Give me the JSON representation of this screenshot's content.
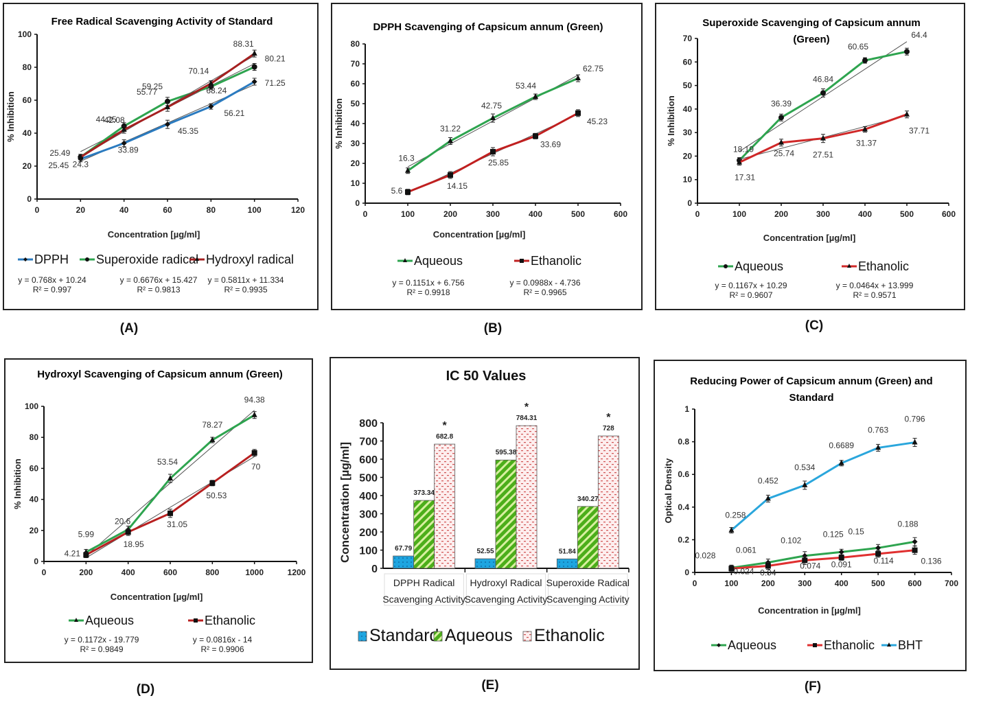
{
  "chart_data": [
    {
      "id": "A",
      "type": "line",
      "panel_label": "(A)",
      "title": "Free Radical Scavenging Activity of Standard",
      "title_lines": [
        "Free Radical Scavenging Activity of Standard"
      ],
      "xlabel": "Concentration [µg/ml]",
      "ylabel": "% Inhibition",
      "xlim": [
        0,
        120
      ],
      "ylim": [
        0,
        100
      ],
      "xticks": [
        0,
        20,
        40,
        60,
        80,
        100,
        120
      ],
      "yticks": [
        0,
        20,
        40,
        60,
        80,
        100
      ],
      "x": [
        20,
        40,
        60,
        80,
        100
      ],
      "series": [
        {
          "name": "DPPH",
          "color": "#2b7bc0",
          "marker": "diamond",
          "values": [
            24.3,
            33.89,
            45.35,
            56.21,
            71.25
          ],
          "labels": [
            "24.3",
            "33.89",
            "45.35",
            "56.21",
            "71.25"
          ],
          "equation": "y = 0.768x + 10.24",
          "r2": "R² = 0.997"
        },
        {
          "name": "Superoxide radical",
          "color": "#2ea44f",
          "marker": "circle",
          "values": [
            25.49,
            44.25,
            59.25,
            68.24,
            80.21
          ],
          "labels": [
            "25.49",
            "44.25",
            "59.25",
            "68.24",
            "80.21"
          ],
          "equation": "y = 0.6676x + 15.427",
          "r2": "R² = 0.9813"
        },
        {
          "name": "Hydroxyl radical",
          "color": "#a52020",
          "marker": "triangle",
          "values": [
            25.45,
            42.08,
            55.77,
            70.14,
            88.31
          ],
          "labels": [
            "25.45",
            "42.08",
            "55.77",
            "70.14",
            "88.31"
          ],
          "equation": "y = 0.5811x + 11.334",
          "r2": "R² = 0.9935"
        }
      ],
      "legend": "bottom",
      "grid": false
    },
    {
      "id": "B",
      "type": "line",
      "panel_label": "(B)",
      "title": "DPPH Scavenging of Capsicum annum (Green)",
      "title_lines": [
        "DPPH Scavenging of Capsicum annum (Green)"
      ],
      "xlabel": "Concentration [µg/ml]",
      "ylabel": "% Inhibition",
      "xlim": [
        0,
        600
      ],
      "ylim": [
        0,
        80
      ],
      "xticks": [
        0,
        100,
        200,
        300,
        400,
        500,
        600
      ],
      "yticks": [
        0,
        10,
        20,
        30,
        40,
        50,
        60,
        70,
        80
      ],
      "x": [
        100,
        200,
        300,
        400,
        500
      ],
      "series": [
        {
          "name": "Aqueous",
          "color": "#2ea44f",
          "marker": "triangle",
          "values": [
            16.3,
            31.22,
            42.75,
            53.44,
            62.75
          ],
          "labels": [
            "16.3",
            "31.22",
            "42.75",
            "53.44",
            "62.75"
          ],
          "equation": "y = 0.1151x + 6.756",
          "r2": "R² = 0.9918"
        },
        {
          "name": "Ethanolic",
          "color": "#c02020",
          "marker": "square",
          "values": [
            5.6,
            14.15,
            25.85,
            33.69,
            45.23
          ],
          "labels": [
            "5.6",
            "14.15",
            "25.85",
            "33.69",
            "45.23"
          ],
          "equation": "y = 0.0988x - 4.736",
          "r2": "R² = 0.9965"
        }
      ],
      "legend": "bottom",
      "grid": false
    },
    {
      "id": "C",
      "type": "line",
      "panel_label": "(C)",
      "title": "Superoxide Scavenging of Capsicum annum (Green)",
      "title_lines": [
        "Superoxide Scavenging of Capsicum annum",
        "(Green)"
      ],
      "xlabel": "Concentration [µg/ml]",
      "ylabel": "% Inhibition",
      "xlim": [
        0,
        600
      ],
      "ylim": [
        0,
        70
      ],
      "xticks": [
        0,
        100,
        200,
        300,
        400,
        500,
        600
      ],
      "yticks": [
        0,
        10,
        20,
        30,
        40,
        50,
        60,
        70
      ],
      "x": [
        100,
        200,
        300,
        400,
        500
      ],
      "series": [
        {
          "name": "Aqueous",
          "color": "#2ea44f",
          "marker": "circle",
          "values": [
            18.19,
            36.39,
            46.84,
            60.65,
            64.4
          ],
          "labels": [
            "18.19",
            "36.39",
            "46.84",
            "60.65",
            "64.4"
          ],
          "equation": "y = 0.1167x + 10.29",
          "r2": "R² = 0.9607"
        },
        {
          "name": "Ethanolic",
          "color": "#d02828",
          "marker": "triangle",
          "values": [
            17.31,
            25.74,
            27.51,
            31.37,
            37.71
          ],
          "labels": [
            "17.31",
            "25.74",
            "27.51",
            "31.37",
            "37.71"
          ],
          "equation": "y = 0.0464x + 13.999",
          "r2": "R² = 0.9571"
        }
      ],
      "legend": "bottom",
      "grid": false
    },
    {
      "id": "D",
      "type": "line",
      "panel_label": "(D)",
      "title": "Hydroxyl Scavenging of Capsicum annum (Green)",
      "title_lines": [
        "Hydroxyl Scavenging of Capsicum annum (Green)"
      ],
      "xlabel": "Concentration [µg/ml]",
      "ylabel": "% Inhibition",
      "xlim": [
        0,
        1200
      ],
      "ylim": [
        0,
        100
      ],
      "xticks": [
        0,
        200,
        400,
        600,
        800,
        1000,
        1200
      ],
      "yticks": [
        0,
        20,
        40,
        60,
        80,
        100
      ],
      "x": [
        200,
        400,
        600,
        800,
        1000
      ],
      "series": [
        {
          "name": "Aqueous",
          "color": "#2ea44f",
          "marker": "triangle",
          "values": [
            5.99,
            20.6,
            53.54,
            78.27,
            94.38
          ],
          "labels": [
            "5.99",
            "20.6",
            "53.54",
            "78.27",
            "94.38"
          ],
          "equation": "y = 0.1172x - 19.779",
          "r2": "R² = 0.9849"
        },
        {
          "name": "Ethanolic",
          "color": "#b82020",
          "marker": "square",
          "values": [
            4.21,
            18.95,
            31.05,
            50.53,
            70
          ],
          "labels": [
            "4.21",
            "18.95",
            "31.05",
            "50.53",
            "70"
          ],
          "equation": "y = 0.0816x - 14",
          "r2": "R² = 0.9906"
        }
      ],
      "legend": "bottom",
      "grid": false
    },
    {
      "id": "E",
      "type": "bar",
      "panel_label": "(E)",
      "title": "IC 50 Values",
      "ylabel": "Concentration [µg/ml]",
      "xlabel": "",
      "ylim": [
        0,
        800
      ],
      "yticks": [
        0,
        100,
        200,
        300,
        400,
        500,
        600,
        700,
        800
      ],
      "categories": [
        [
          "DPPH Radical",
          "Scavenging Activity"
        ],
        [
          "Hydroxyl Radical",
          "Scavenging Activity"
        ],
        [
          "Superoxide  Radical",
          "Scavenging Activity"
        ]
      ],
      "series": [
        {
          "name": "Standard",
          "color": "#1ea5e0",
          "pattern": "dots",
          "values": [
            67.79,
            52.55,
            51.84
          ],
          "labels": [
            "67.79",
            "52.55",
            "51.84"
          ]
        },
        {
          "name": "Aqueous",
          "color": "#4cae1a",
          "pattern": "diagonal-stripes",
          "values": [
            373.34,
            595.38,
            340.27
          ],
          "labels": [
            "373.34",
            "595.38",
            "340.27"
          ]
        },
        {
          "name": "Ethanolic",
          "color": "#f8dede",
          "pattern": "red-dashes",
          "values": [
            682.8,
            784.31,
            728
          ],
          "labels": [
            "682.8",
            "784.31",
            "728"
          ]
        }
      ],
      "annotations": [
        "*",
        "*",
        "*"
      ],
      "legend": "bottom",
      "grid": false
    },
    {
      "id": "F",
      "type": "line",
      "panel_label": "(F)",
      "title": "Reducing Power of Capsicum annum (Green) and Standard",
      "title_lines": [
        "Reducing Power of  Capsicum annum (Green) and",
        "Standard"
      ],
      "xlabel": "Concentration in [µg/ml]",
      "ylabel": "Optical Density",
      "xlim": [
        0,
        700
      ],
      "ylim": [
        0,
        1
      ],
      "xticks": [
        0,
        100,
        200,
        300,
        400,
        500,
        600,
        700
      ],
      "yticks": [
        0,
        0.2,
        0.4,
        0.6,
        0.8,
        1
      ],
      "ytick_labels": [
        "0",
        "0.2",
        "0.4",
        "0.6",
        "0.8",
        "1"
      ],
      "x": [
        100,
        200,
        300,
        400,
        500,
        600
      ],
      "series": [
        {
          "name": "Aqueous",
          "color": "#2ea44f",
          "marker": "diamond",
          "values": [
            0.028,
            0.061,
            0.102,
            0.125,
            0.15,
            0.188
          ],
          "labels": [
            "0.028",
            "0.061",
            "0.102",
            "0.125",
            "0.15",
            "0.188"
          ]
        },
        {
          "name": "Ethanolic",
          "color": "#e03030",
          "marker": "square",
          "values": [
            0.024,
            0.04,
            0.074,
            0.091,
            0.114,
            0.136
          ],
          "labels": [
            "0.024",
            "0.04",
            "0.074",
            "0.091",
            "0.114",
            "0.136"
          ]
        },
        {
          "name": "BHT",
          "color": "#2aa6dc",
          "marker": "triangle",
          "values": [
            0.258,
            0.452,
            0.534,
            0.6689,
            0.763,
            0.796
          ],
          "labels": [
            "0.258",
            "0.452",
            "0.534",
            "0.6689",
            "0.763",
            "0.796"
          ]
        }
      ],
      "legend": "bottom",
      "grid": false
    }
  ]
}
